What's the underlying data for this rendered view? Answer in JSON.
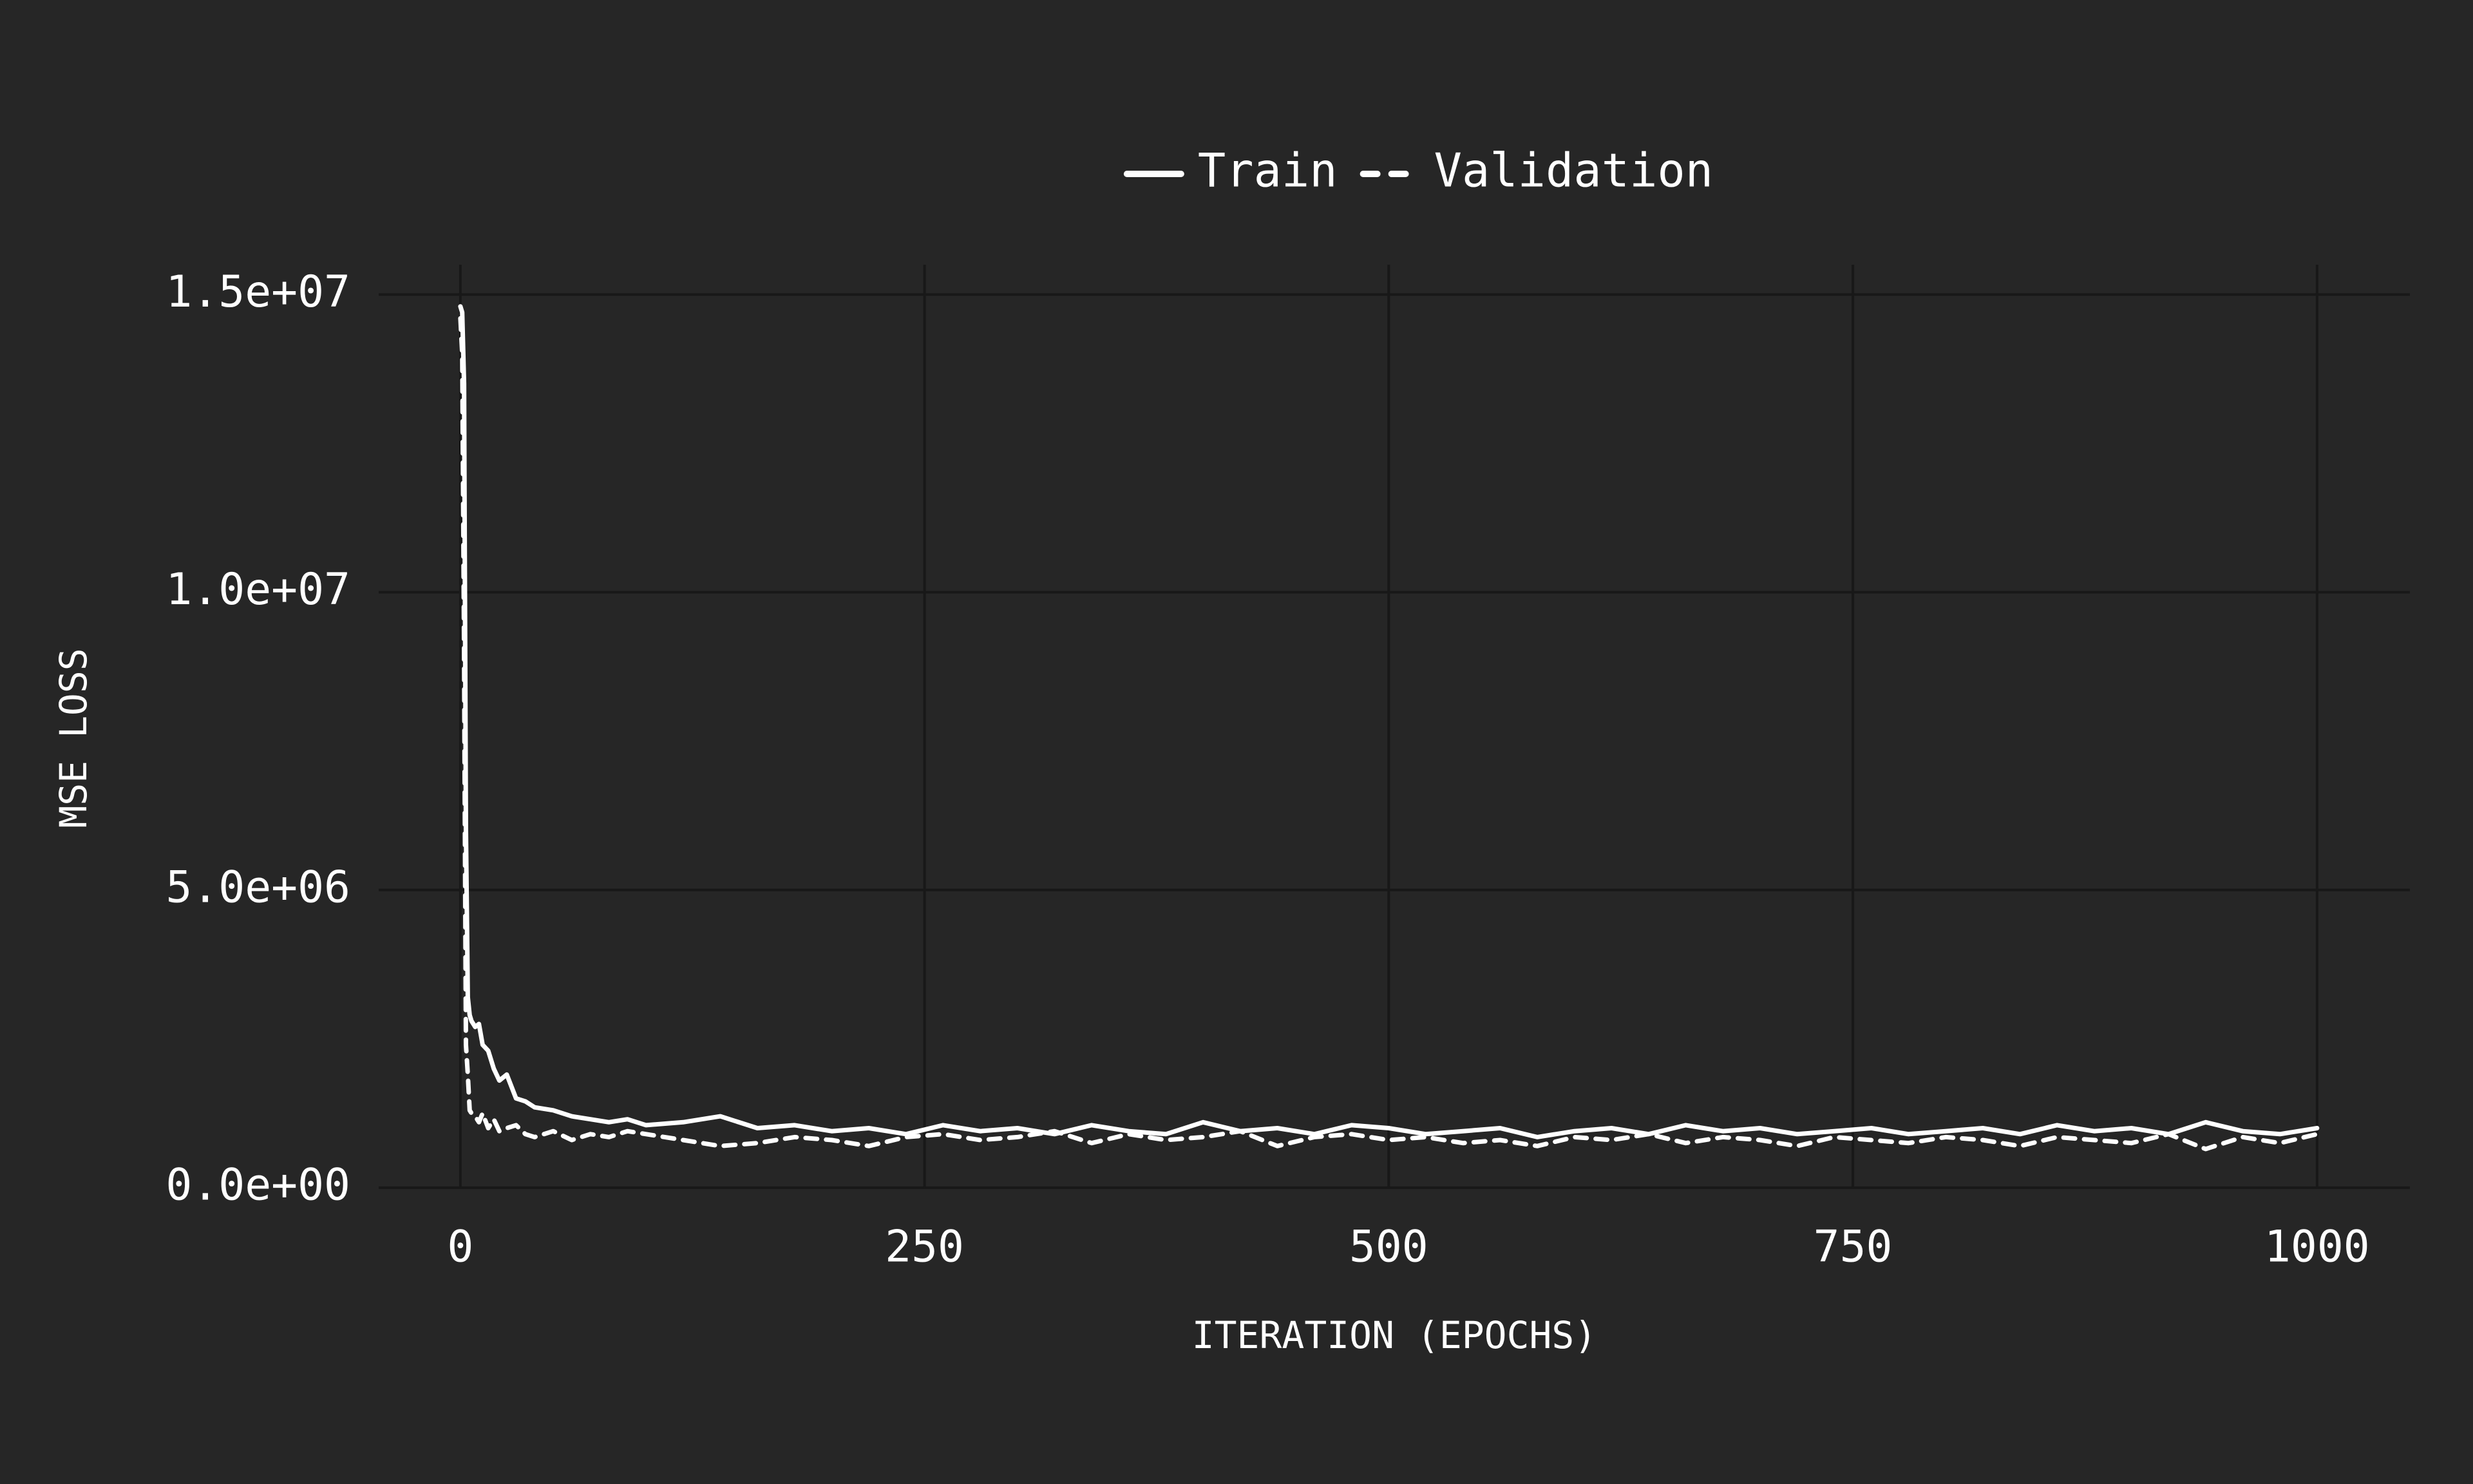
{
  "chart_data": {
    "type": "line",
    "x_label": "ITERATION (EPOCHS)",
    "y_label": "MSE LOSS",
    "x": [
      0,
      1,
      2,
      3,
      4,
      5,
      6,
      8,
      10,
      12,
      15,
      18,
      21,
      25,
      30,
      35,
      40,
      50,
      60,
      70,
      80,
      90,
      100,
      120,
      140,
      160,
      180,
      200,
      220,
      240,
      260,
      280,
      300,
      320,
      340,
      360,
      380,
      400,
      420,
      440,
      460,
      480,
      500,
      520,
      540,
      560,
      580,
      600,
      620,
      640,
      660,
      680,
      700,
      720,
      740,
      760,
      780,
      800,
      820,
      840,
      860,
      880,
      900,
      920,
      940,
      960,
      980,
      1000
    ],
    "series": [
      {
        "name": "Train",
        "color": "#ffffff",
        "dash": false,
        "values": [
          14800000,
          14700000,
          13500000,
          6000000,
          3200000,
          2900000,
          2800000,
          2700000,
          2750000,
          2400000,
          2300000,
          2000000,
          1800000,
          1900000,
          1500000,
          1450000,
          1350000,
          1300000,
          1200000,
          1150000,
          1100000,
          1150000,
          1050000,
          1100000,
          1200000,
          1000000,
          1050000,
          950000,
          1000000,
          900000,
          1050000,
          950000,
          1000000,
          900000,
          1050000,
          950000,
          900000,
          1100000,
          950000,
          1000000,
          900000,
          1050000,
          1000000,
          900000,
          950000,
          1000000,
          850000,
          950000,
          1000000,
          900000,
          1050000,
          950000,
          1000000,
          900000,
          950000,
          1000000,
          900000,
          950000,
          1000000,
          900000,
          1050000,
          950000,
          1000000,
          900000,
          1100000,
          950000,
          900000,
          1000000
        ]
      },
      {
        "name": "Validation",
        "color": "#ffffff",
        "dash": true,
        "values": [
          14600000,
          14000000,
          9000000,
          2400000,
          1900000,
          1300000,
          1250000,
          1200000,
          1100000,
          1250000,
          1000000,
          1150000,
          950000,
          1000000,
          1050000,
          900000,
          850000,
          950000,
          800000,
          900000,
          850000,
          950000,
          900000,
          800000,
          700000,
          750000,
          850000,
          800000,
          700000,
          850000,
          900000,
          800000,
          850000,
          950000,
          750000,
          900000,
          800000,
          850000,
          950000,
          700000,
          850000,
          900000,
          800000,
          850000,
          750000,
          800000,
          700000,
          850000,
          800000,
          900000,
          750000,
          850000,
          800000,
          700000,
          850000,
          800000,
          750000,
          850000,
          800000,
          700000,
          850000,
          800000,
          750000,
          900000,
          650000,
          850000,
          750000,
          900000
        ]
      }
    ],
    "xlim": [
      -44,
      1050
    ],
    "ylim": [
      0,
      15500000
    ],
    "xticks": [
      0,
      250,
      500,
      750,
      1000
    ],
    "yticks": [
      {
        "value": 0,
        "label": "0.0e+00"
      },
      {
        "value": 5000000,
        "label": "5.0e+06"
      },
      {
        "value": 10000000,
        "label": "1.0e+07"
      },
      {
        "value": 15000000,
        "label": "1.5e+07"
      }
    ],
    "grid": true,
    "legend": "top"
  }
}
